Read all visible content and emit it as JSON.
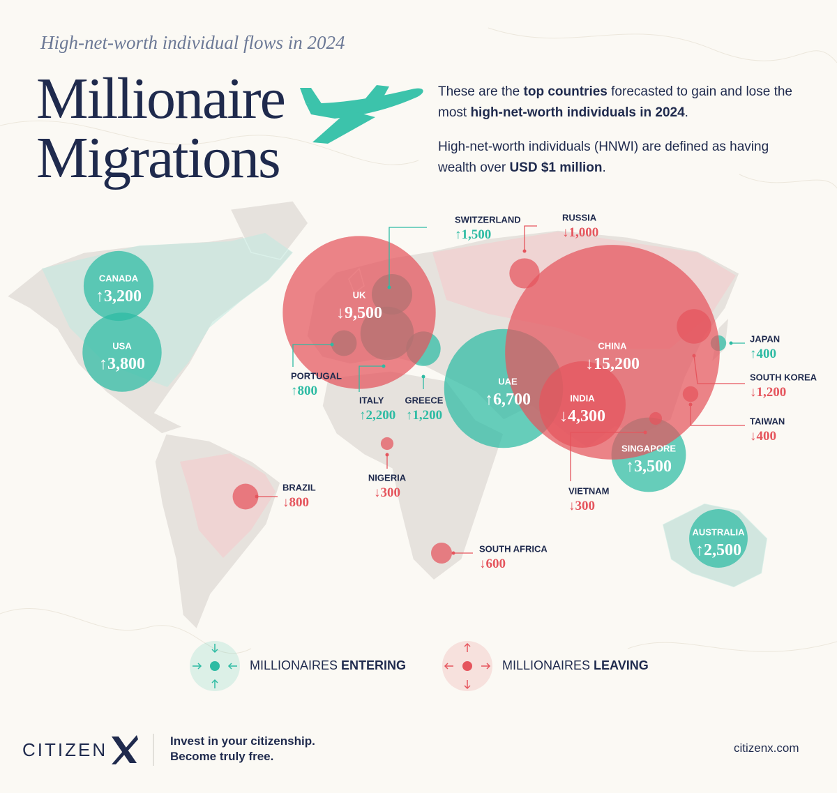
{
  "subtitle": "High-net-worth individual flows in 2024",
  "title": [
    "Millionaire",
    "Migrations"
  ],
  "intro": [
    [
      {
        "text": "These are the "
      },
      {
        "text": "top countries",
        "bold": true
      },
      {
        "text": " forecasted to gain and lose the most "
      },
      {
        "text": "high-net-worth individuals in 2024",
        "bold": true
      },
      {
        "text": "."
      }
    ],
    [
      {
        "text": "High-net-worth individuals (HNWI) are defined as having wealth over "
      },
      {
        "text": "USD $1 million",
        "bold": true
      },
      {
        "text": "."
      }
    ]
  ],
  "chart_data": {
    "type": "bubble-map",
    "series": [
      {
        "name": "MILLIONAIRES",
        "emphasis": "ENTERING",
        "arrow": "↑",
        "color": "#2dbba3",
        "categories": [
          "CANADA",
          "USA",
          "SWITZERLAND",
          "PORTUGAL",
          "ITALY",
          "GREECE",
          "UAE",
          "JAPAN",
          "SINGAPORE",
          "AUSTRALIA"
        ],
        "values": [
          3200,
          3800,
          1500,
          800,
          2200,
          1200,
          6700,
          400,
          3500,
          2500
        ],
        "value_labels": [
          "3,200",
          "3,800",
          "1,500",
          "800",
          "2,200",
          "1,200",
          "6,700",
          "400",
          "3,500",
          "2,500"
        ]
      },
      {
        "name": "MILLIONAIRES",
        "emphasis": "LEAVING",
        "arrow": "↓",
        "color": "#e5555d",
        "categories": [
          "UK",
          "RUSSIA",
          "CHINA",
          "INDIA",
          "SOUTH KOREA",
          "TAIWAN",
          "VIETNAM",
          "NIGERIA",
          "BRAZIL",
          "SOUTH AFRICA"
        ],
        "values": [
          9500,
          1000,
          15200,
          4300,
          1200,
          400,
          300,
          300,
          800,
          600
        ],
        "value_labels": [
          "9,500",
          "1,000",
          "15,200",
          "4,300",
          "1,200",
          "400",
          "300",
          "300",
          "800",
          "600"
        ]
      }
    ]
  },
  "footer": {
    "brand": "CITIZEN",
    "tagline": [
      "Invest in your citizenship.",
      "Become truly free."
    ],
    "url": "citizenx.com"
  }
}
